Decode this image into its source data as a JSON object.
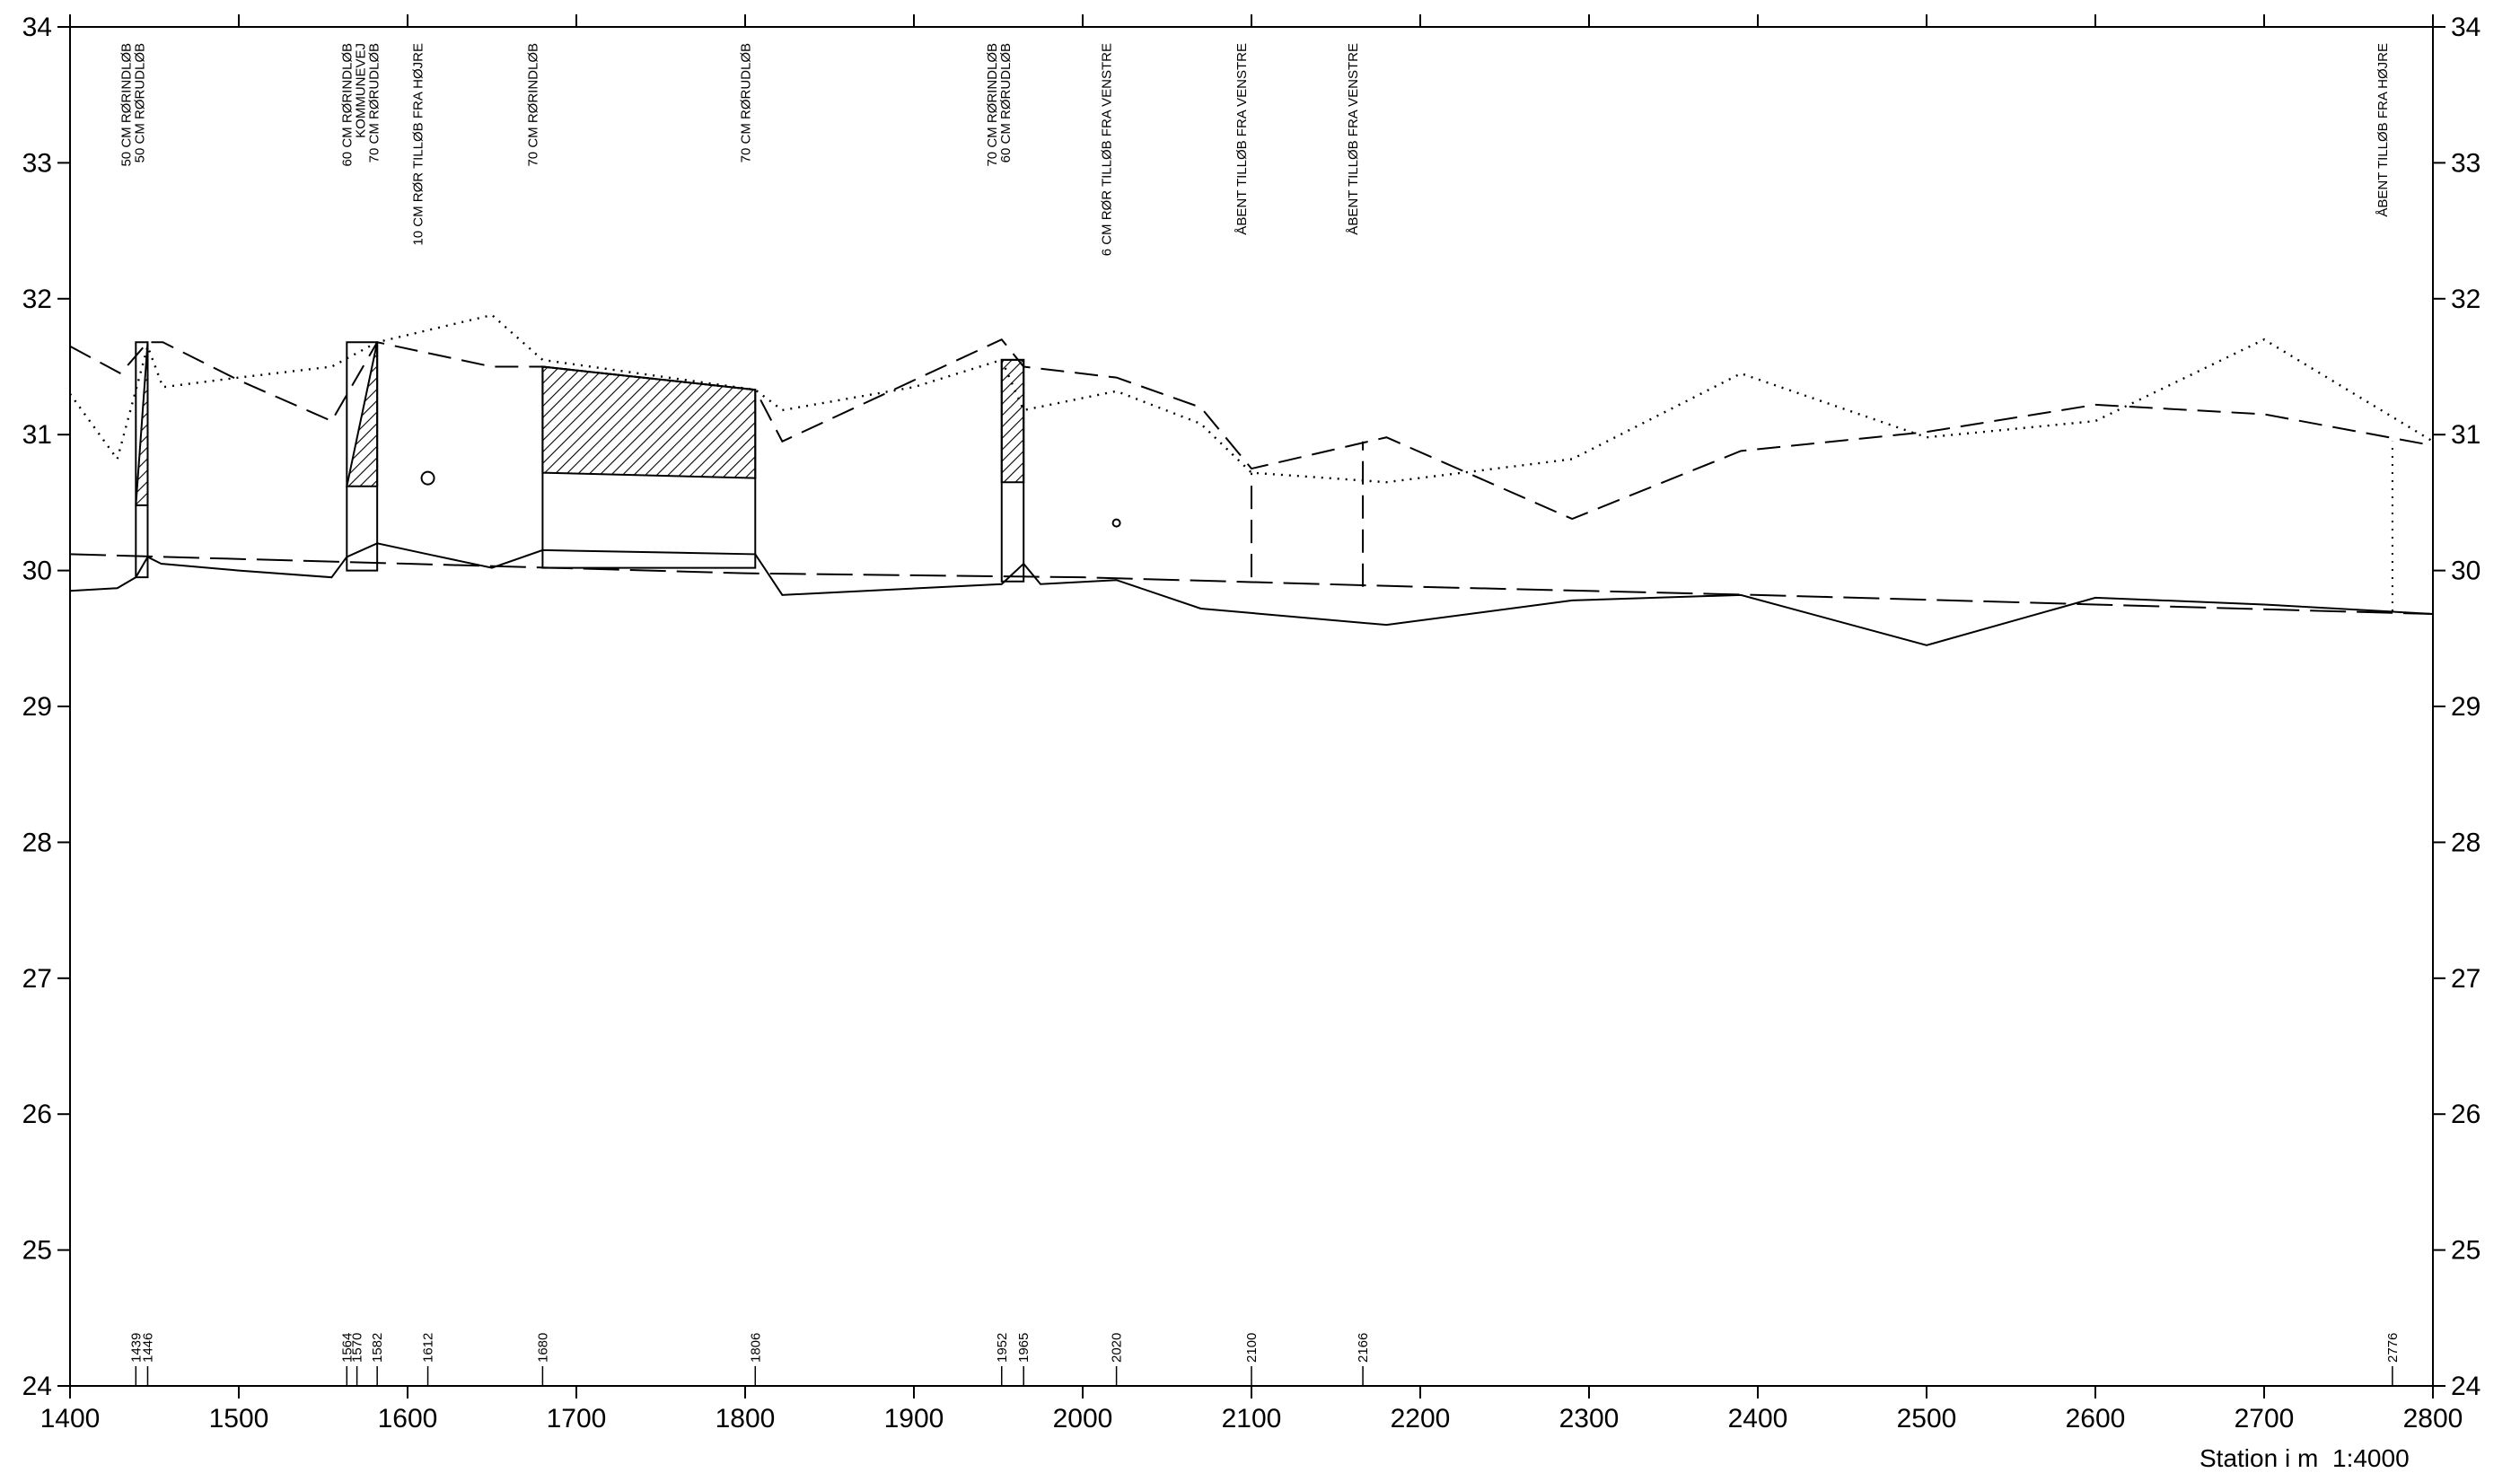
{
  "chart_data": {
    "type": "line",
    "xlabel": "Station i m",
    "scale_label": "1:4000",
    "xlim": [
      1400,
      2800
    ],
    "ylim": [
      24,
      34
    ],
    "grid": false,
    "x_ticks": [
      1400,
      1500,
      1600,
      1700,
      1800,
      1900,
      2000,
      2100,
      2200,
      2300,
      2400,
      2500,
      2600,
      2700,
      2800
    ],
    "y_ticks": [
      24,
      25,
      26,
      27,
      28,
      29,
      30,
      31,
      32,
      33,
      34
    ],
    "series": [
      {
        "style": "solid",
        "points": [
          [
            1400,
            29.85
          ],
          [
            1428,
            29.87
          ],
          [
            1439,
            29.95
          ],
          [
            1446,
            30.1
          ],
          [
            1454,
            30.05
          ],
          [
            1500,
            30.0
          ],
          [
            1555,
            29.95
          ],
          [
            1564,
            30.1
          ],
          [
            1582,
            30.2
          ],
          [
            1612,
            30.12
          ],
          [
            1650,
            30.02
          ],
          [
            1680,
            30.15
          ],
          [
            1806,
            30.12
          ],
          [
            1822,
            29.82
          ],
          [
            1952,
            29.9
          ],
          [
            1965,
            30.05
          ],
          [
            1975,
            29.9
          ],
          [
            2020,
            29.93
          ],
          [
            2070,
            29.72
          ],
          [
            2180,
            29.6
          ],
          [
            2290,
            29.78
          ],
          [
            2390,
            29.82
          ],
          [
            2500,
            29.45
          ],
          [
            2600,
            29.8
          ],
          [
            2700,
            29.75
          ],
          [
            2800,
            29.68
          ]
        ]
      },
      {
        "style": "long-dash",
        "points": [
          [
            1400,
            31.65
          ],
          [
            1430,
            31.45
          ],
          [
            1446,
            31.68
          ],
          [
            1455,
            31.68
          ],
          [
            1500,
            31.4
          ],
          [
            1555,
            31.1
          ],
          [
            1582,
            31.68
          ],
          [
            1650,
            31.5
          ],
          [
            1680,
            31.5
          ],
          [
            1806,
            31.33
          ],
          [
            1822,
            30.95
          ],
          [
            1900,
            31.4
          ],
          [
            1952,
            31.7
          ],
          [
            1965,
            31.5
          ],
          [
            2020,
            31.42
          ],
          [
            2070,
            31.2
          ],
          [
            2100,
            30.75
          ],
          [
            2180,
            30.98
          ],
          [
            2290,
            30.38
          ],
          [
            2390,
            30.88
          ],
          [
            2500,
            31.02
          ],
          [
            2600,
            31.22
          ],
          [
            2700,
            31.15
          ],
          [
            2800,
            30.92
          ]
        ]
      },
      {
        "style": "dotted",
        "points": [
          [
            1400,
            31.3
          ],
          [
            1428,
            30.82
          ],
          [
            1446,
            31.65
          ],
          [
            1455,
            31.35
          ],
          [
            1500,
            31.42
          ],
          [
            1555,
            31.5
          ],
          [
            1582,
            31.68
          ],
          [
            1650,
            31.88
          ],
          [
            1680,
            31.55
          ],
          [
            1806,
            31.33
          ],
          [
            1822,
            31.18
          ],
          [
            1900,
            31.35
          ],
          [
            1952,
            31.55
          ],
          [
            1965,
            31.18
          ],
          [
            2020,
            31.32
          ],
          [
            2070,
            31.08
          ],
          [
            2100,
            30.72
          ],
          [
            2180,
            30.65
          ],
          [
            2290,
            30.82
          ],
          [
            2390,
            31.45
          ],
          [
            2500,
            30.98
          ],
          [
            2600,
            31.1
          ],
          [
            2700,
            31.7
          ],
          [
            2800,
            30.95
          ]
        ]
      },
      {
        "style": "dash-dot",
        "points": [
          [
            1400,
            30.12
          ],
          [
            1600,
            30.05
          ],
          [
            1800,
            29.98
          ],
          [
            2000,
            29.95
          ],
          [
            2200,
            29.88
          ],
          [
            2400,
            29.82
          ],
          [
            2600,
            29.75
          ],
          [
            2800,
            29.68
          ]
        ]
      }
    ],
    "structures": [
      {
        "x1": 1439,
        "x2": 1446,
        "bottom": 29.95,
        "top": 31.68,
        "hatch_top": 31.68,
        "hatch_bottom": 30.48,
        "hatch_shape": "triangle"
      },
      {
        "x1": 1564,
        "x2": 1582,
        "bottom": 30.0,
        "top": 31.68,
        "hatch_top": 31.68,
        "hatch_bottom": 30.62,
        "hatch_shape": "triangle"
      },
      {
        "x1": 1680,
        "x2": 1806,
        "bottom": 30.02,
        "top": 31.5,
        "top_right": 31.33,
        "hatch_bottom": 30.72,
        "hatch_bottom_right": 30.68,
        "hatch_shape": "quad"
      },
      {
        "x1": 1952,
        "x2": 1965,
        "bottom": 29.92,
        "top": 31.55,
        "hatch_top": 31.55,
        "hatch_bottom": 30.65,
        "hatch_shape": "quad"
      }
    ],
    "markers": [
      {
        "x": 1612,
        "y": 30.68,
        "size": "large"
      },
      {
        "x": 2020,
        "y": 30.35,
        "size": "small"
      }
    ],
    "verticals": [
      {
        "x": 2100,
        "y1": 29.95,
        "y2": 30.72,
        "style": "long-dash"
      },
      {
        "x": 2166,
        "y1": 29.88,
        "y2": 30.95,
        "style": "long-dash"
      },
      {
        "x": 2776,
        "y1": 29.7,
        "y2": 30.95,
        "style": "dotted"
      }
    ],
    "stations": [
      "1439",
      "1446",
      "1564",
      "1570",
      "1582",
      "1612",
      "1680",
      "1806",
      "1952",
      "1965",
      "2020",
      "2100",
      "2166",
      "2776"
    ],
    "annotations": [
      {
        "x": 1439,
        "lines": [
          "50 CM RØRINDLØB",
          "50 CM RØRUDLØB"
        ]
      },
      {
        "x": 1570,
        "lines": [
          "60 CM RØRINDLØB",
          "KOMMUNEVEJ",
          "70 CM RØRUDLØB"
        ]
      },
      {
        "x": 1612,
        "lines": [
          "10 CM RØR TILLØB FRA HØJRE"
        ]
      },
      {
        "x": 1680,
        "lines": [
          "70 CM RØRINDLØB"
        ]
      },
      {
        "x": 1806,
        "lines": [
          "70 CM RØRUDLØB"
        ]
      },
      {
        "x": 1952,
        "lines": [
          "70 CM RØRINDLØB",
          "60 CM RØRUDLØB"
        ]
      },
      {
        "x": 2020,
        "lines": [
          "6 CM RØR TILLØB FRA VENSTRE"
        ]
      },
      {
        "x": 2100,
        "lines": [
          "ÅBENT TILLØB FRA VENSTRE"
        ]
      },
      {
        "x": 2166,
        "lines": [
          "ÅBENT TILLØB FRA VENSTRE"
        ]
      },
      {
        "x": 2776,
        "lines": [
          "ÅBENT TILLØB FRA HØJRE"
        ]
      }
    ]
  }
}
